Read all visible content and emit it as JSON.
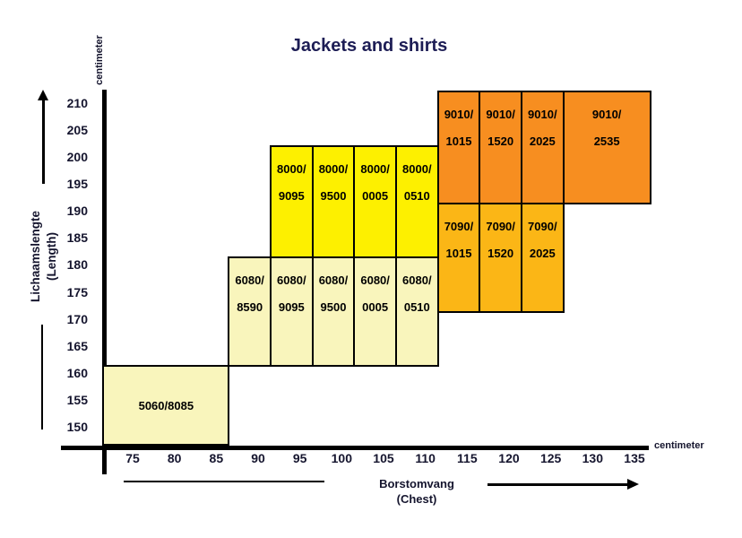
{
  "chart_data": {
    "type": "heatmap",
    "title": "Jackets and shirts",
    "x_axis": {
      "label": "Borstomvang",
      "sublabel": "(Chest)",
      "unit": "centimeter",
      "ticks": [
        75,
        80,
        85,
        90,
        95,
        100,
        105,
        110,
        115,
        120,
        125,
        130,
        135
      ],
      "range": [
        70,
        138
      ]
    },
    "y_axis": {
      "label": "Lichaamslengte",
      "sublabel": "(Length)",
      "unit": "centimeter",
      "ticks": [
        150,
        155,
        160,
        165,
        170,
        175,
        180,
        185,
        190,
        195,
        200,
        205,
        210
      ],
      "range": [
        146,
        214
      ]
    },
    "palette": {
      "cream": "#F9F5BC",
      "yellow": "#FDF000",
      "amber": "#FBB616",
      "orange": "#F78E20",
      "border": "#000000",
      "axis": "#000000",
      "text": "#000000",
      "title_text": "#1D1D55"
    },
    "legend": "none",
    "grid": false,
    "blocks": [
      {
        "code": "5060/8085",
        "lines": [
          "5060/8085"
        ],
        "tone": "cream",
        "chest": [
          71.5,
          86.5
        ],
        "length": [
          146.8,
          161.5
        ]
      },
      {
        "code": "6080/8590",
        "lines": [
          "6080/",
          "8590"
        ],
        "tone": "cream",
        "chest": [
          86.5,
          91.5
        ],
        "length": [
          161.5,
          181.5
        ]
      },
      {
        "code": "6080/9095",
        "lines": [
          "6080/",
          "9095"
        ],
        "tone": "cream",
        "chest": [
          91.5,
          96.5
        ],
        "length": [
          161.5,
          181.5
        ]
      },
      {
        "code": "6080/9500",
        "lines": [
          "6080/",
          "9500"
        ],
        "tone": "cream",
        "chest": [
          96.5,
          101.5
        ],
        "length": [
          161.5,
          181.5
        ]
      },
      {
        "code": "6080/0005",
        "lines": [
          "6080/",
          "0005"
        ],
        "tone": "cream",
        "chest": [
          101.5,
          106.5
        ],
        "length": [
          161.5,
          181.5
        ]
      },
      {
        "code": "6080/0510",
        "lines": [
          "6080/",
          "0510"
        ],
        "tone": "cream",
        "chest": [
          106.5,
          111.5
        ],
        "length": [
          161.5,
          181.5
        ]
      },
      {
        "code": "8000/9095",
        "lines": [
          "8000/",
          "9095"
        ],
        "tone": "yellow",
        "chest": [
          91.5,
          96.5
        ],
        "length": [
          181.5,
          202.2
        ]
      },
      {
        "code": "8000/9500",
        "lines": [
          "8000/",
          "9500"
        ],
        "tone": "yellow",
        "chest": [
          96.5,
          101.5
        ],
        "length": [
          181.5,
          202.2
        ]
      },
      {
        "code": "8000/0005",
        "lines": [
          "8000/",
          "0005"
        ],
        "tone": "yellow",
        "chest": [
          101.5,
          106.5
        ],
        "length": [
          181.5,
          202.2
        ]
      },
      {
        "code": "8000/0510",
        "lines": [
          "8000/",
          "0510"
        ],
        "tone": "yellow",
        "chest": [
          106.5,
          111.5
        ],
        "length": [
          181.5,
          202.2
        ]
      },
      {
        "code": "7090/1015",
        "lines": [
          "7090/",
          "1015"
        ],
        "tone": "amber",
        "chest": [
          111.5,
          116.5
        ],
        "length": [
          171.5,
          191.5
        ]
      },
      {
        "code": "7090/1520",
        "lines": [
          "7090/",
          "1520"
        ],
        "tone": "amber",
        "chest": [
          116.5,
          121.5
        ],
        "length": [
          171.5,
          191.5
        ]
      },
      {
        "code": "7090/2025",
        "lines": [
          "7090/",
          "2025"
        ],
        "tone": "amber",
        "chest": [
          121.5,
          126.5
        ],
        "length": [
          171.5,
          191.5
        ]
      },
      {
        "code": "9010/1015",
        "lines": [
          "9010/",
          "1015"
        ],
        "tone": "orange",
        "chest": [
          111.5,
          116.5
        ],
        "length": [
          191.5,
          212.3
        ]
      },
      {
        "code": "9010/1520",
        "lines": [
          "9010/",
          "1520"
        ],
        "tone": "orange",
        "chest": [
          116.5,
          121.5
        ],
        "length": [
          191.5,
          212.3
        ]
      },
      {
        "code": "9010/2025",
        "lines": [
          "9010/",
          "2025"
        ],
        "tone": "orange",
        "chest": [
          121.5,
          126.5
        ],
        "length": [
          191.5,
          212.3
        ]
      },
      {
        "code": "9010/2535",
        "lines": [
          "9010/",
          "2535"
        ],
        "tone": "orange",
        "chest": [
          126.5,
          136.9
        ],
        "length": [
          191.5,
          212.3
        ]
      }
    ]
  }
}
